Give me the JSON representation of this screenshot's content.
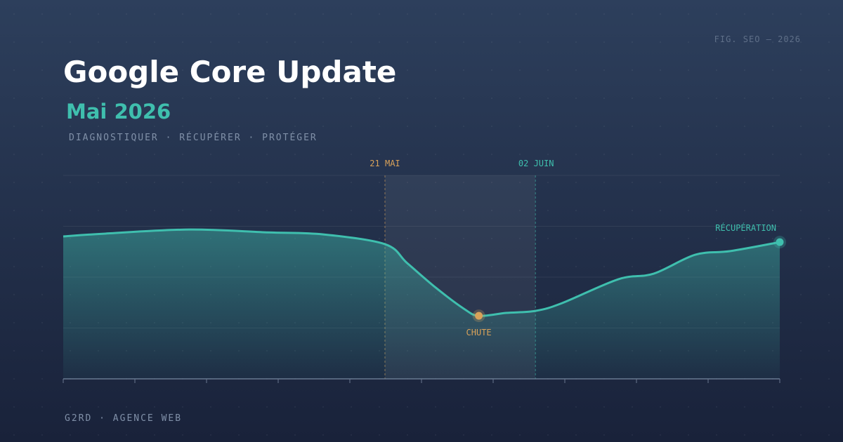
{
  "chart_data": {
    "type": "line",
    "figure_label": "FIG. SEO — 2026",
    "title": "Google Core Update",
    "subtitle": "Mai 2026",
    "tagline": "DIAGNOSTIQUER · RÉCUPÉRER · PROTÉGER",
    "footer": "G2RD · AGENCE WEB",
    "x": [
      0,
      5.9,
      17.6,
      28.4,
      36.3,
      44.9,
      48,
      52,
      55.9,
      58,
      61.8,
      65.9,
      69.6,
      77.5,
      82.4,
      88.2,
      93.1,
      100
    ],
    "series": [
      {
        "color": "#3fbfae",
        "values": [
          70,
          71.4,
          73.4,
          72,
          71,
          66.2,
          56.9,
          44.8,
          34.5,
          31,
          32.4,
          33.4,
          37.2,
          49,
          51.7,
          61,
          62.8,
          67.2
        ]
      }
    ],
    "xlim": [
      0,
      100
    ],
    "ylim": [
      0,
      100
    ],
    "grid": true,
    "highlight": {
      "start": 44.9,
      "end": 65.9,
      "start_label": "21 MAI",
      "end_label": "02 JUIN",
      "start_color": "#d9a25a",
      "end_color": "#3fbfae"
    },
    "annotations": [
      {
        "text": "CHUTE",
        "x": 58,
        "y": 31,
        "color": "#d9a25a"
      },
      {
        "text": "RÉCUPÉRATION",
        "x": 100,
        "y": 67.2,
        "color": "#3fbfae"
      }
    ]
  }
}
